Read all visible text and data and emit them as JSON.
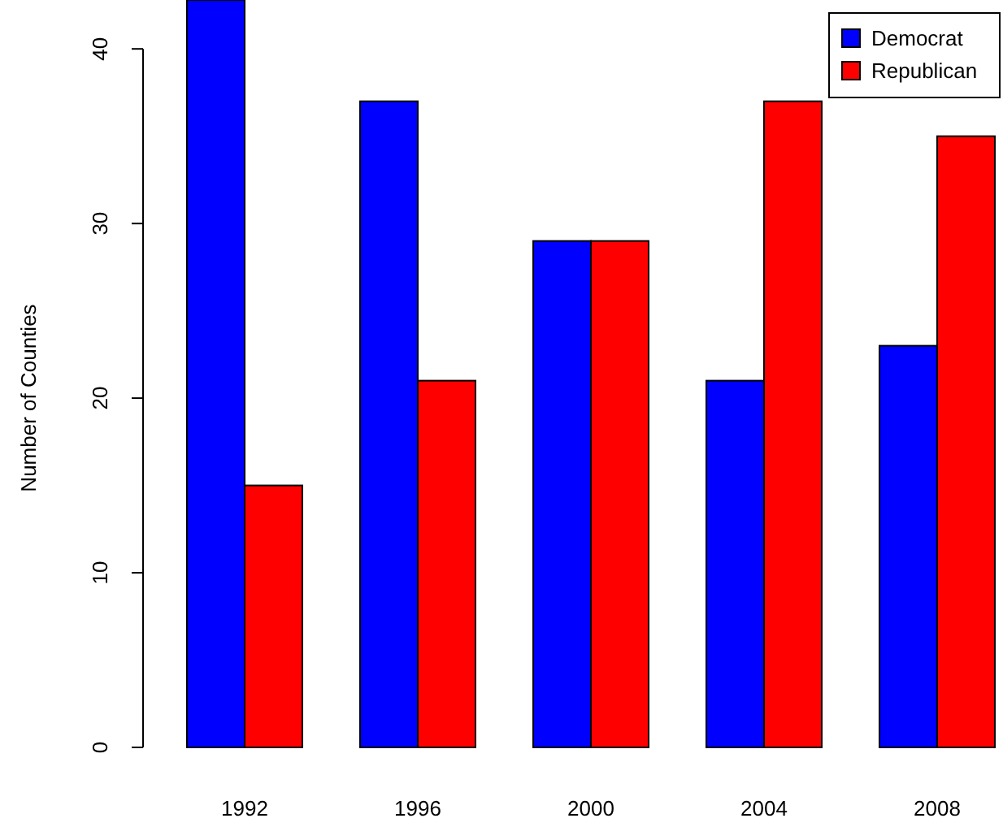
{
  "chart_data": {
    "type": "bar",
    "ylabel": "Number of Counties",
    "categories": [
      "1992",
      "1996",
      "2000",
      "2004",
      "2008"
    ],
    "series": [
      {
        "name": "Democrat",
        "color": "#0000ff",
        "values": [
          42.8,
          37,
          29,
          21,
          23
        ]
      },
      {
        "name": "Republican",
        "color": "#ff0000",
        "values": [
          15,
          21,
          29,
          37,
          35
        ]
      }
    ],
    "ylim": [
      0,
      42.8
    ],
    "yticks": [
      0,
      10,
      20,
      30,
      40
    ],
    "legend": "top right",
    "grid": false
  }
}
